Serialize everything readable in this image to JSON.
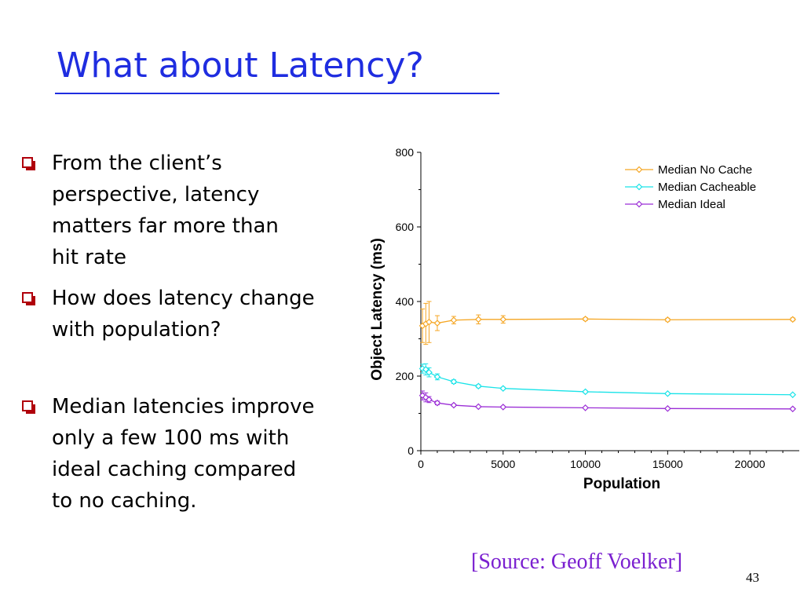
{
  "slide": {
    "title": "What about Latency?",
    "bullets": [
      "From the client’s\nperspective, latency\nmatters far more than\nhit rate",
      "How does latency change\nwith population?",
      "Median latencies improve\nonly a few 100 ms with\nideal caching compared\nto no caching."
    ],
    "source": "[Source: Geoff Voelker]",
    "page_number": "43"
  },
  "colors": {
    "title": "#1f2de0",
    "bullet_marker": "#b0000b",
    "source": "#7a1fd0"
  },
  "chart_data": {
    "type": "line",
    "xlabel": "Population",
    "ylabel": "Object Latency (ms)",
    "xlim": [
      0,
      23000
    ],
    "ylim": [
      0,
      800
    ],
    "x_ticks": [
      0,
      5000,
      10000,
      15000,
      20000
    ],
    "y_ticks": [
      0,
      200,
      400,
      600,
      800
    ],
    "legend_position": "top-right",
    "grid": false,
    "series": [
      {
        "name": "Median No Cache",
        "color": "#f5a623",
        "x": [
          100,
          300,
          500,
          1000,
          2000,
          3500,
          5000,
          10000,
          15000,
          22600
        ],
        "y": [
          335,
          340,
          345,
          342,
          350,
          352,
          352,
          353,
          351,
          352
        ],
        "err": [
          45,
          55,
          55,
          20,
          10,
          12,
          10,
          4,
          4,
          4
        ]
      },
      {
        "name": "Median Cacheable",
        "color": "#19e3e8",
        "x": [
          100,
          300,
          500,
          1000,
          2000,
          3500,
          5000,
          10000,
          15000,
          22600
        ],
        "y": [
          220,
          218,
          210,
          198,
          185,
          173,
          167,
          158,
          153,
          150
        ],
        "err": [
          12,
          15,
          12,
          8,
          5,
          4,
          3,
          3,
          2,
          2
        ]
      },
      {
        "name": "Median Ideal",
        "color": "#9b2ed6",
        "x": [
          100,
          300,
          500,
          1000,
          2000,
          3500,
          5000,
          10000,
          15000,
          22600
        ],
        "y": [
          148,
          143,
          137,
          128,
          122,
          118,
          117,
          115,
          113,
          112
        ],
        "err": [
          12,
          12,
          8,
          5,
          3,
          2,
          2,
          2,
          2,
          2
        ]
      }
    ]
  }
}
